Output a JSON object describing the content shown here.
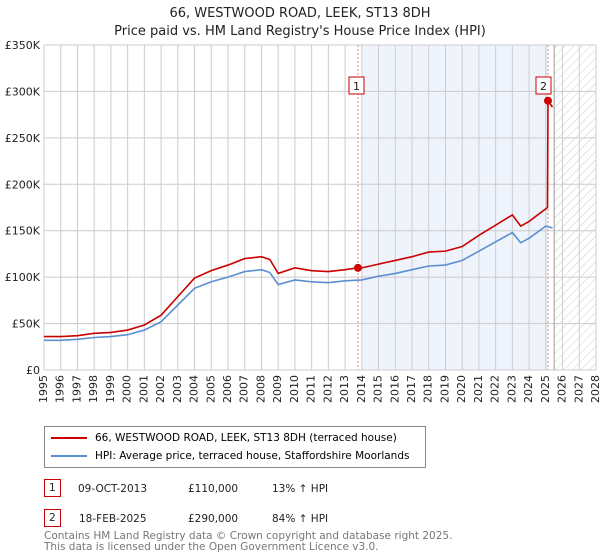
{
  "chart_data": {
    "type": "line",
    "title": "66, WESTWOOD ROAD, LEEK, ST13 8DH",
    "subtitle": "Price paid vs. HM Land Registry's House Price Index (HPI)",
    "xlim": [
      1995,
      2028
    ],
    "ylim": [
      0,
      350000
    ],
    "x_ticks": [
      "1995",
      "1996",
      "1997",
      "1998",
      "1999",
      "2000",
      "2001",
      "2002",
      "2003",
      "2004",
      "2005",
      "2006",
      "2007",
      "2008",
      "2009",
      "2010",
      "2011",
      "2012",
      "2013",
      "2014",
      "2015",
      "2016",
      "2017",
      "2018",
      "2019",
      "2020",
      "2021",
      "2022",
      "2023",
      "2024",
      "2025",
      "2026",
      "2027",
      "2028"
    ],
    "y_ticks": [
      "£0",
      "£50K",
      "£100K",
      "£150K",
      "£200K",
      "£250K",
      "£300K",
      "£350K"
    ],
    "grid": true,
    "series": [
      {
        "name": "66, WESTWOOD ROAD, LEEK, ST13 8DH (terraced house)",
        "color": "#cc0000",
        "x": [
          1995,
          1996,
          1997,
          1998,
          1999,
          2000,
          2001,
          2002,
          2003,
          2004,
          2005,
          2006,
          2007,
          2008,
          2008.5,
          2009,
          2010,
          2011,
          2012,
          2013,
          2013.77,
          2014,
          2015,
          2016,
          2017,
          2018,
          2019,
          2020,
          2021,
          2022,
          2023,
          2023.5,
          2024,
          2025.1,
          2025.13,
          2025.4
        ],
        "y": [
          36000,
          36000,
          37000,
          39500,
          40500,
          43000,
          48500,
          59000,
          79000,
          99000,
          107000,
          113000,
          120000,
          122000,
          119000,
          104000,
          110000,
          107000,
          106000,
          108000,
          110000,
          110000,
          114000,
          118000,
          122000,
          127000,
          128000,
          133000,
          145000,
          156000,
          167000,
          155000,
          160000,
          175000,
          290000,
          283000
        ]
      },
      {
        "name": "HPI: Average price, terraced house, Staffordshire Moorlands",
        "color": "#5b8fd0",
        "x": [
          1995,
          1996,
          1997,
          1998,
          1999,
          2000,
          2001,
          2002,
          2003,
          2004,
          2005,
          2006,
          2007,
          2008,
          2008.5,
          2009,
          2010,
          2011,
          2012,
          2013,
          2014,
          2015,
          2016,
          2017,
          2018,
          2019,
          2020,
          2021,
          2022,
          2023,
          2023.5,
          2024,
          2025,
          2025.4
        ],
        "y": [
          32000,
          32000,
          33000,
          35000,
          36000,
          38000,
          43000,
          52000,
          70000,
          88000,
          95000,
          100000,
          106000,
          108000,
          105000,
          92000,
          97000,
          95000,
          94000,
          96000,
          97000,
          101000,
          104000,
          108000,
          112000,
          113000,
          118000,
          128000,
          138000,
          148000,
          137000,
          142000,
          155000,
          153000
        ]
      }
    ],
    "sales": [
      {
        "label": "1",
        "date": "09-OCT-2013",
        "x": 2013.77,
        "price": "£110,000",
        "value": 110000,
        "hpi": "13% ↑ HPI"
      },
      {
        "label": "2",
        "date": "18-FEB-2025",
        "x": 2025.13,
        "price": "£290,000",
        "value": 290000,
        "hpi": "84% ↑ HPI"
      }
    ]
  },
  "footer": {
    "line1": "Contains HM Land Registry data © Crown copyright and database right 2025.",
    "line2": "This data is licensed under the Open Government Licence v3.0."
  }
}
